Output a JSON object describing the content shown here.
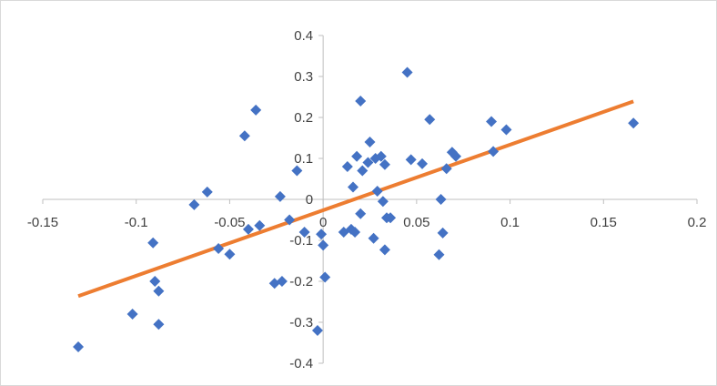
{
  "chart_data": {
    "type": "scatter",
    "title": "",
    "xlabel": "",
    "ylabel": "",
    "xlim": [
      -0.15,
      0.2
    ],
    "ylim": [
      -0.4,
      0.4
    ],
    "grid": false,
    "legend": "none",
    "x_ticks": [
      -0.15,
      -0.1,
      -0.05,
      0,
      0.05,
      0.1,
      0.15,
      0.2
    ],
    "x_tick_labels": [
      "-0.15",
      "-0.1",
      "-0.05",
      "0",
      "0.05",
      "0.1",
      "0.15",
      "0.2"
    ],
    "y_ticks": [
      -0.4,
      -0.3,
      -0.2,
      -0.1,
      0,
      0.1,
      0.2,
      0.3,
      0.4
    ],
    "y_tick_labels": [
      "-0.4",
      "-0.3",
      "-0.2",
      "-0.1",
      "0",
      "0.1",
      "0.2",
      "0.3",
      "0.4"
    ],
    "series": [
      {
        "marker": "diamond",
        "color": "#4472c4",
        "points": [
          [
            -0.131,
            -0.36
          ],
          [
            -0.102,
            -0.28
          ],
          [
            -0.091,
            -0.106
          ],
          [
            -0.09,
            -0.2
          ],
          [
            -0.088,
            -0.224
          ],
          [
            -0.088,
            -0.305
          ],
          [
            -0.069,
            -0.013
          ],
          [
            -0.062,
            0.018
          ],
          [
            -0.056,
            -0.12
          ],
          [
            -0.05,
            -0.134
          ],
          [
            -0.042,
            0.155
          ],
          [
            -0.04,
            -0.073
          ],
          [
            -0.036,
            0.218
          ],
          [
            -0.034,
            -0.064
          ],
          [
            -0.026,
            -0.205
          ],
          [
            -0.023,
            0.007
          ],
          [
            -0.022,
            -0.2
          ],
          [
            -0.018,
            -0.05
          ],
          [
            -0.014,
            0.07
          ],
          [
            -0.01,
            -0.08
          ],
          [
            -0.003,
            -0.32
          ],
          [
            -0.001,
            -0.085
          ],
          [
            0.0,
            -0.112
          ],
          [
            0.001,
            -0.19
          ],
          [
            0.011,
            -0.08
          ],
          [
            0.013,
            0.08
          ],
          [
            0.015,
            -0.073
          ],
          [
            0.016,
            0.03
          ],
          [
            0.017,
            -0.08
          ],
          [
            0.018,
            0.105
          ],
          [
            0.02,
            0.24
          ],
          [
            0.02,
            -0.035
          ],
          [
            0.021,
            0.07
          ],
          [
            0.024,
            0.09
          ],
          [
            0.025,
            0.14
          ],
          [
            0.027,
            -0.095
          ],
          [
            0.028,
            0.1
          ],
          [
            0.029,
            0.02
          ],
          [
            0.031,
            0.105
          ],
          [
            0.032,
            -0.005
          ],
          [
            0.033,
            0.085
          ],
          [
            0.033,
            -0.123
          ],
          [
            0.034,
            -0.045
          ],
          [
            0.036,
            -0.045
          ],
          [
            0.045,
            0.31
          ],
          [
            0.047,
            0.097
          ],
          [
            0.053,
            0.087
          ],
          [
            0.057,
            0.195
          ],
          [
            0.062,
            -0.135
          ],
          [
            0.063,
            0.0
          ],
          [
            0.064,
            -0.082
          ],
          [
            0.066,
            0.075
          ],
          [
            0.069,
            0.115
          ],
          [
            0.071,
            0.105
          ],
          [
            0.09,
            0.19
          ],
          [
            0.091,
            0.117
          ],
          [
            0.098,
            0.17
          ],
          [
            0.166,
            0.186
          ]
        ]
      }
    ],
    "trendline": {
      "color": "#ed7d31",
      "x_range": [
        -0.131,
        0.166
      ],
      "slope": 1.6,
      "intercept": -0.0265
    }
  }
}
